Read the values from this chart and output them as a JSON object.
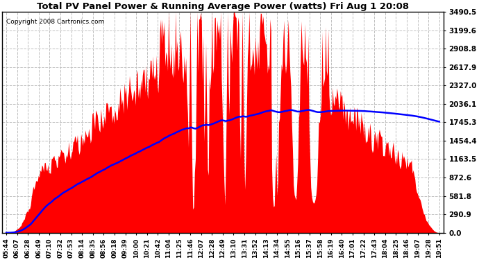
{
  "title": "Total PV Panel Power & Running Average Power (watts) Fri Aug 1 20:08",
  "copyright": "Copyright 2008 Cartronics.com",
  "yticks": [
    0.0,
    290.9,
    581.8,
    872.6,
    1163.5,
    1454.4,
    1745.3,
    2036.1,
    2327.0,
    2617.9,
    2908.8,
    3199.6,
    3490.5
  ],
  "ylim": [
    0,
    3490.5
  ],
  "bg_color": "#ffffff",
  "plot_bg_color": "#ffffff",
  "bar_color": "#ff0000",
  "line_color": "#0000ff",
  "grid_color": "#c0c0c0",
  "xtick_labels": [
    "05:44",
    "06:07",
    "06:28",
    "06:49",
    "07:10",
    "07:32",
    "07:53",
    "08:14",
    "08:35",
    "08:56",
    "09:18",
    "09:39",
    "10:00",
    "10:21",
    "10:42",
    "11:04",
    "11:25",
    "11:46",
    "12:07",
    "12:28",
    "12:49",
    "13:10",
    "13:31",
    "13:52",
    "14:13",
    "14:34",
    "14:55",
    "15:16",
    "15:37",
    "15:58",
    "16:19",
    "16:40",
    "17:01",
    "17:22",
    "17:43",
    "18:04",
    "18:25",
    "18:46",
    "19:07",
    "19:28",
    "19:51"
  ],
  "n_ticks": 41,
  "n_samples": 500
}
